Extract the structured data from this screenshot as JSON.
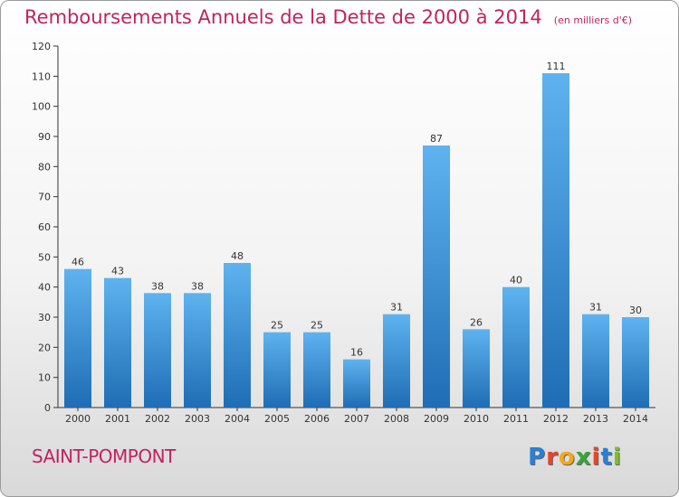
{
  "title": "Remboursements Annuels de la Dette de 2000 à 2014",
  "subtitle": "(en milliers d'€)",
  "commune": "SAINT-POMPONT",
  "brand": {
    "letters": [
      "P",
      "r",
      "o",
      "x",
      "i",
      "t",
      "i"
    ],
    "colors": [
      "#2a7fd4",
      "#e8452c",
      "#f2a81d",
      "#3aa53a",
      "#e8452c",
      "#2a7fd4",
      "#7bbf2a"
    ]
  },
  "colors": {
    "bar_light": "#5eb3ef",
    "bar_dark": "#1f6db5",
    "title": "#c0245c"
  },
  "chart_data": {
    "type": "bar",
    "categories": [
      "2000",
      "2001",
      "2002",
      "2003",
      "2004",
      "2005",
      "2006",
      "2007",
      "2008",
      "2009",
      "2010",
      "2011",
      "2012",
      "2013",
      "2014"
    ],
    "values": [
      46,
      43,
      38,
      38,
      48,
      25,
      25,
      16,
      31,
      87,
      26,
      40,
      111,
      31,
      30
    ],
    "data_labels": [
      "46",
      "43",
      "38",
      "38",
      "48",
      "25",
      "25",
      "16",
      "31",
      "87",
      "26",
      "40",
      "111",
      "31",
      "30"
    ],
    "ylim": [
      0,
      120
    ],
    "yticks": [
      "0",
      "10",
      "20",
      "30",
      "40",
      "50",
      "60",
      "70",
      "80",
      "90",
      "100",
      "110",
      "120"
    ],
    "grid": false,
    "xlabel": "",
    "ylabel": ""
  }
}
